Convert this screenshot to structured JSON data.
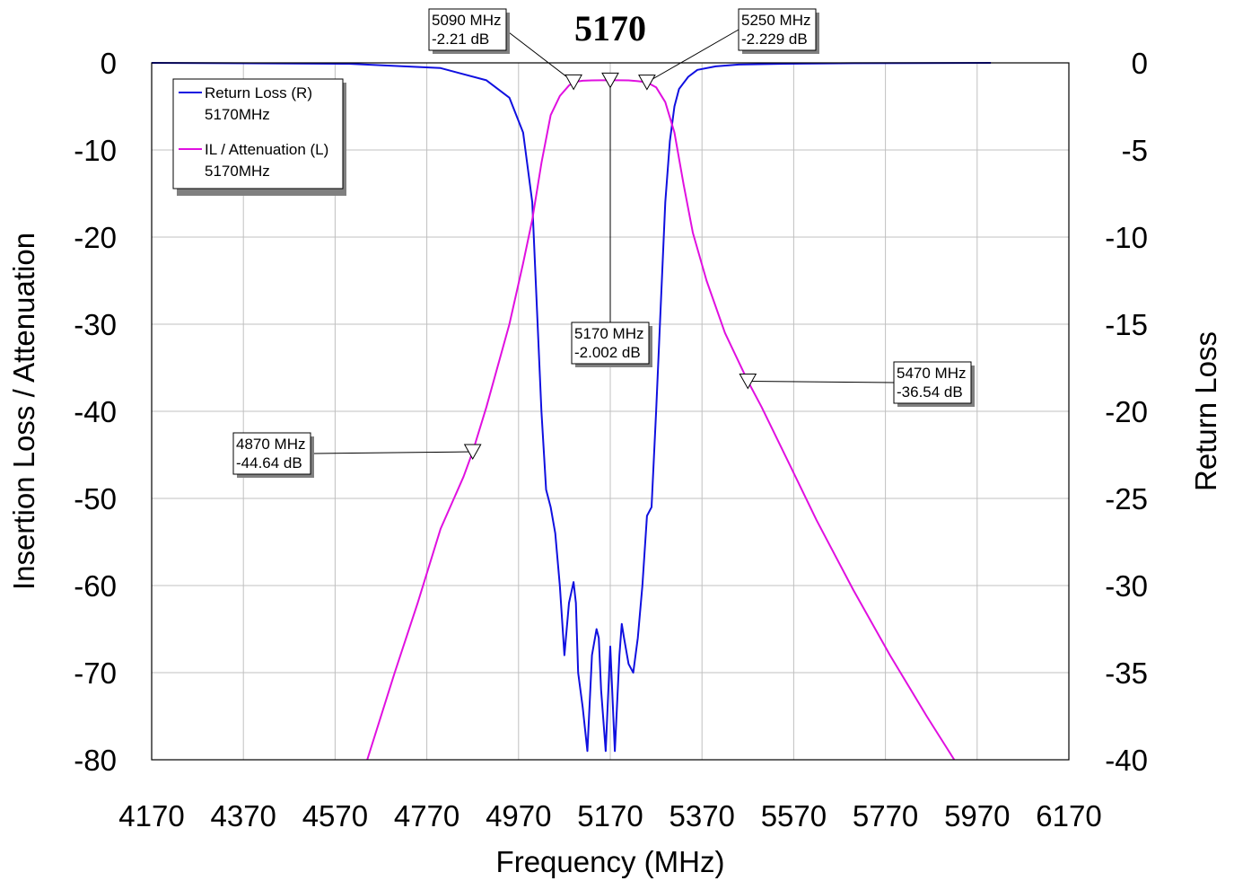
{
  "chart_data": {
    "type": "line",
    "title": "5170",
    "xlabel": "Frequency (MHz)",
    "ylabel_left": "Insertion Loss / Attenuation",
    "ylabel_right": "Return Loss",
    "xlim": [
      4170,
      6170
    ],
    "ylim_left": [
      -80,
      0
    ],
    "ylim_right": [
      -40,
      0
    ],
    "x_ticks": [
      "4170",
      "4370",
      "4570",
      "4770",
      "4970",
      "5170",
      "5370",
      "5570",
      "5770",
      "5970",
      "6170"
    ],
    "y_left_ticks": [
      "0",
      "-10",
      "-20",
      "-30",
      "-40",
      "-50",
      "-60",
      "-70",
      "-80"
    ],
    "y_right_ticks": [
      "0",
      "-5",
      "-10",
      "-15",
      "-20",
      "-25",
      "-30",
      "-35",
      "-40"
    ],
    "grid": true,
    "legend_position": "top-left",
    "series": [
      {
        "name": "Return Loss (R)",
        "legend_sub": "5170MHz",
        "axis": "right",
        "color": "#1010e0",
        "x": [
          4170,
          4600,
          4800,
          4900,
          4950,
          4980,
          5000,
          5010,
          5020,
          5030,
          5040,
          5050,
          5060,
          5070,
          5080,
          5090,
          5095,
          5100,
          5110,
          5120,
          5130,
          5140,
          5145,
          5150,
          5160,
          5170,
          5180,
          5190,
          5195,
          5200,
          5210,
          5220,
          5230,
          5240,
          5250,
          5260,
          5270,
          5280,
          5290,
          5300,
          5310,
          5320,
          5340,
          5360,
          5400,
          5450,
          5550,
          5700,
          6000
        ],
        "y": [
          0,
          -0.05,
          -0.3,
          -1.0,
          -2.0,
          -4.0,
          -8.0,
          -14.0,
          -20.0,
          -24.5,
          -25.5,
          -27.0,
          -30.0,
          -34.0,
          -31.0,
          -29.8,
          -31.0,
          -35.0,
          -37.0,
          -39.5,
          -34.0,
          -32.5,
          -33.0,
          -36.0,
          -39.5,
          -33.5,
          -39.5,
          -34.0,
          -32.2,
          -33.0,
          -34.5,
          -35.0,
          -33.0,
          -30.0,
          -26.0,
          -25.5,
          -20.0,
          -14.0,
          -8.0,
          -4.5,
          -2.5,
          -1.5,
          -0.8,
          -0.4,
          -0.2,
          -0.1,
          -0.05,
          -0.02,
          0
        ]
      },
      {
        "name": "IL / Attenuation (L)",
        "legend_sub": "5170MHz",
        "axis": "left",
        "color": "#e010e0",
        "x": [
          4640,
          4700,
          4750,
          4800,
          4850,
          4870,
          4900,
          4950,
          4980,
          5000,
          5020,
          5040,
          5060,
          5080,
          5090,
          5110,
          5130,
          5150,
          5170,
          5190,
          5210,
          5230,
          5250,
          5270,
          5290,
          5310,
          5330,
          5350,
          5380,
          5420,
          5470,
          5500,
          5560,
          5620,
          5700,
          5780,
          5860,
          5920
        ],
        "y": [
          -80,
          -70,
          -62,
          -53.5,
          -47.5,
          -44.64,
          -39.5,
          -30,
          -23,
          -18,
          -11.5,
          -6.0,
          -3.8,
          -2.6,
          -2.21,
          -2.05,
          -2.01,
          -2.0,
          -2.002,
          -2.0,
          -2.01,
          -2.1,
          -2.229,
          -2.8,
          -4.5,
          -8.0,
          -14.0,
          -19.5,
          -25,
          -31,
          -36.54,
          -39.5,
          -46,
          -52.5,
          -60.5,
          -68,
          -75,
          -80
        ]
      }
    ],
    "markers": [
      {
        "series": "IL / Attenuation (L)",
        "freq": 4870,
        "value": -44.64,
        "label1": "4870 MHz",
        "label2": "-44.64 dB"
      },
      {
        "series": "IL / Attenuation (L)",
        "freq": 5090,
        "value": -2.21,
        "label1": "5090 MHz",
        "label2": "-2.21 dB"
      },
      {
        "series": "IL / Attenuation (L)",
        "freq": 5170,
        "value": -2.002,
        "label1": "5170 MHz",
        "label2": "-2.002 dB"
      },
      {
        "series": "IL / Attenuation (L)",
        "freq": 5250,
        "value": -2.229,
        "label1": "5250 MHz",
        "label2": "-2.229 dB"
      },
      {
        "series": "IL / Attenuation (L)",
        "freq": 5470,
        "value": -36.54,
        "label1": "5470 MHz",
        "label2": "-36.54 dB"
      }
    ]
  }
}
